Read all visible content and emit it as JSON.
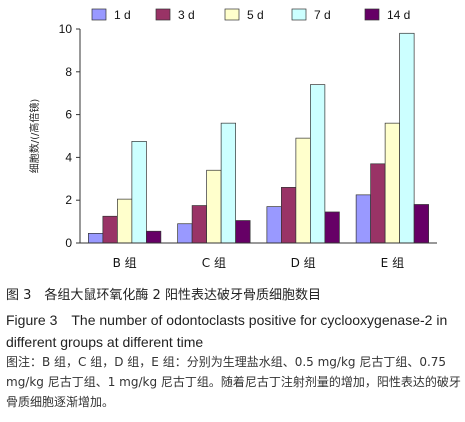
{
  "chart_data": {
    "type": "bar",
    "categories": [
      "B 组",
      "C 组",
      "D 组",
      "E 组"
    ],
    "series": [
      {
        "name": "1 d",
        "color": "#9999ff",
        "values": [
          0.45,
          0.9,
          1.7,
          2.25
        ]
      },
      {
        "name": "3 d",
        "color": "#993366",
        "values": [
          1.25,
          1.75,
          2.6,
          3.7
        ]
      },
      {
        "name": "5 d",
        "color": "#ffffcc",
        "values": [
          2.05,
          3.4,
          4.9,
          5.6
        ]
      },
      {
        "name": "7 d",
        "color": "#ccffff",
        "values": [
          4.75,
          5.6,
          7.4,
          9.8
        ]
      },
      {
        "name": "14 d",
        "color": "#660066",
        "values": [
          0.55,
          1.05,
          1.45,
          1.8
        ]
      }
    ],
    "ylabel": "细胞数/(/高倍镜)",
    "ylim": [
      0,
      10
    ],
    "yticks": [
      "0",
      "2",
      "4",
      "6",
      "8",
      "10"
    ],
    "legend": "top",
    "grid": false
  },
  "caption": {
    "cn": "图 3　各组大鼠环氧化酶 2 阳性表达破牙骨质细胞数目",
    "en": "Figure 3　The number of odontoclasts positive for cyclooxygenase-2 in different groups at different time",
    "note": "图注：B 组，C 组，D 组，E 组：分别为生理盐水组、0.5 mg/kg 尼古丁组、0.75 mg/kg 尼古丁组、1 mg/kg 尼古丁组。随着尼古丁注射剂量的增加，阳性表达的破牙骨质细胞逐渐增加。"
  }
}
